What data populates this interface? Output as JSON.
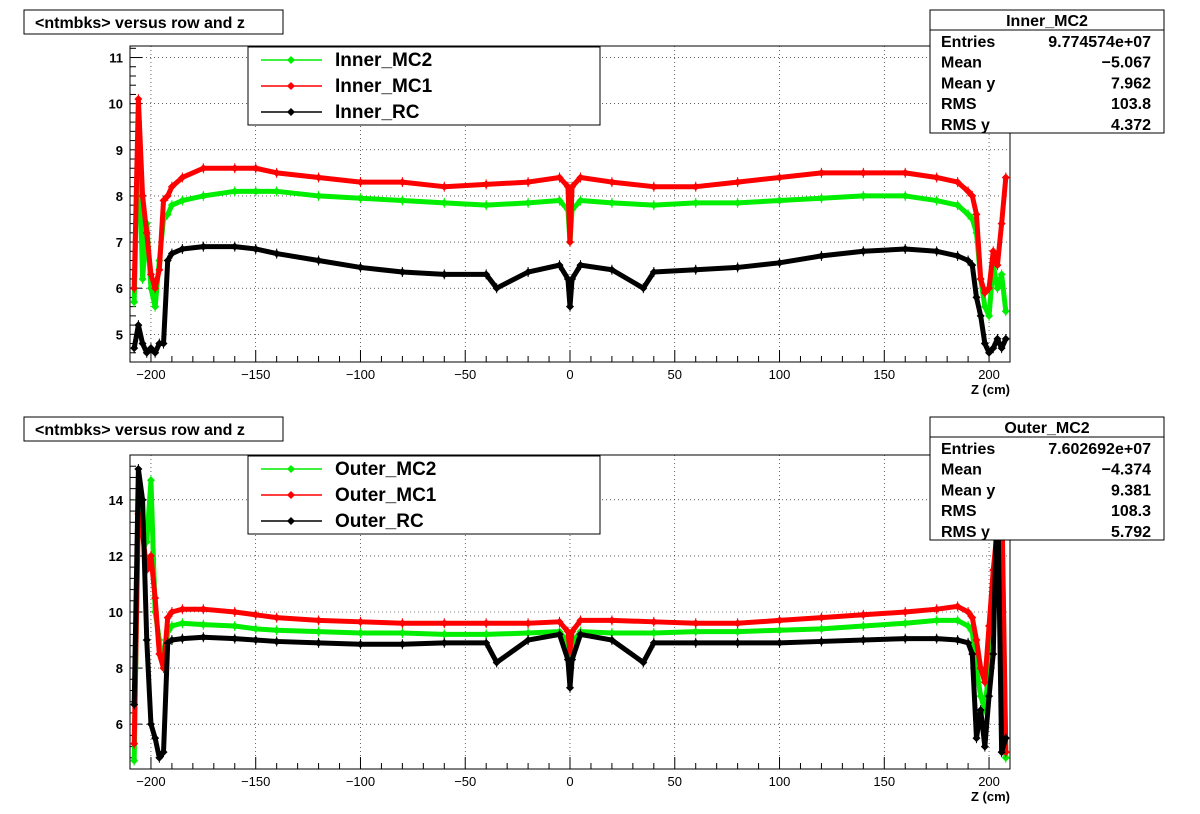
{
  "charts": [
    {
      "id": "inner",
      "title": "<ntmbks> versus row and z",
      "xlabel": "Z (cm)",
      "xlim": [
        -210,
        210
      ],
      "ylim": [
        4.4,
        11.25
      ],
      "xticks": [
        -200,
        -150,
        -100,
        -50,
        0,
        50,
        100,
        150,
        200
      ],
      "xtick_labels": [
        "−200",
        "−150",
        "−100",
        "−50",
        "0",
        "50",
        "100",
        "150",
        "200"
      ],
      "yticks": [
        5,
        6,
        7,
        8,
        9,
        10,
        11
      ],
      "ytick_labels": [
        "5",
        "6",
        "7",
        "8",
        "9",
        "10",
        "11"
      ],
      "legend": [
        "Inner_MC2",
        "Inner_MC1",
        "Inner_RC"
      ],
      "stats": {
        "name": "Inner_MC2",
        "rows": [
          {
            "label": "Entries",
            "value": "9.774574e+07"
          },
          {
            "label": "Mean",
            "value": "−5.067"
          },
          {
            "label": "Mean y",
            "value": "7.962"
          },
          {
            "label": "RMS",
            "value": "103.8"
          },
          {
            "label": "RMS y",
            "value": "4.372"
          }
        ]
      }
    },
    {
      "id": "outer",
      "title": "<ntmbks> versus row and z",
      "xlabel": "Z (cm)",
      "xlim": [
        -210,
        210
      ],
      "ylim": [
        4.4,
        15.6
      ],
      "xticks": [
        -200,
        -150,
        -100,
        -50,
        0,
        50,
        100,
        150,
        200
      ],
      "xtick_labels": [
        "−200",
        "−150",
        "−100",
        "−50",
        "0",
        "50",
        "100",
        "150",
        "200"
      ],
      "yticks": [
        6,
        8,
        10,
        12,
        14
      ],
      "ytick_labels": [
        "6",
        "8",
        "10",
        "12",
        "14"
      ],
      "legend": [
        "Outer_MC2",
        "Outer_MC1",
        "Outer_RC"
      ],
      "stats": {
        "name": "Outer_MC2",
        "rows": [
          {
            "label": "Entries",
            "value": "7.602692e+07"
          },
          {
            "label": "Mean",
            "value": "−4.374"
          },
          {
            "label": "Mean y",
            "value": "9.381"
          },
          {
            "label": "RMS",
            "value": "108.3"
          },
          {
            "label": "RMS y",
            "value": "5.792"
          }
        ]
      }
    }
  ],
  "chart_data": [
    {
      "type": "scatter",
      "title": "<ntmbks> versus row and z",
      "xlabel": "Z (cm)",
      "ylabel": "",
      "xlim": [
        -210,
        210
      ],
      "ylim": [
        4.4,
        11.25
      ],
      "grid": true,
      "legend_position": "top-left",
      "series": [
        {
          "name": "Inner_MC2",
          "color": "#00ee00",
          "x": [
            -208,
            -206,
            -204,
            -202,
            -200,
            -198,
            -196,
            -194,
            -192,
            -190,
            -185,
            -175,
            -160,
            -150,
            -140,
            -120,
            -100,
            -80,
            -60,
            -40,
            -20,
            -5,
            -1,
            0,
            1,
            5,
            20,
            40,
            60,
            80,
            100,
            120,
            140,
            160,
            175,
            185,
            190,
            192,
            194,
            196,
            198,
            200,
            202,
            204,
            206,
            208
          ],
          "y": [
            5.7,
            9.6,
            6.2,
            7.4,
            6.0,
            5.6,
            6.6,
            7.5,
            7.6,
            7.8,
            7.9,
            8.0,
            8.1,
            8.1,
            8.1,
            8.0,
            7.95,
            7.9,
            7.85,
            7.8,
            7.85,
            7.9,
            7.7,
            7.0,
            7.7,
            7.9,
            7.85,
            7.8,
            7.85,
            7.85,
            7.9,
            7.95,
            8.0,
            8.0,
            7.9,
            7.8,
            7.6,
            7.5,
            7.2,
            6.2,
            5.6,
            5.4,
            6.5,
            6.0,
            6.3,
            5.5
          ]
        },
        {
          "name": "Inner_MC1",
          "color": "#ff0000",
          "x": [
            -208,
            -206,
            -204,
            -202,
            -200,
            -198,
            -196,
            -194,
            -192,
            -190,
            -185,
            -175,
            -160,
            -150,
            -140,
            -120,
            -100,
            -80,
            -60,
            -40,
            -20,
            -5,
            -1,
            0,
            1,
            5,
            20,
            40,
            60,
            80,
            100,
            120,
            140,
            160,
            175,
            185,
            190,
            192,
            194,
            196,
            198,
            200,
            202,
            204,
            206,
            208
          ],
          "y": [
            6.0,
            10.1,
            8.0,
            7.2,
            6.3,
            6.0,
            6.4,
            7.9,
            8.0,
            8.2,
            8.4,
            8.6,
            8.6,
            8.6,
            8.5,
            8.4,
            8.3,
            8.3,
            8.2,
            8.25,
            8.3,
            8.4,
            8.2,
            7.0,
            8.2,
            8.4,
            8.3,
            8.2,
            8.2,
            8.3,
            8.4,
            8.5,
            8.5,
            8.5,
            8.4,
            8.3,
            8.1,
            8.0,
            7.6,
            6.2,
            5.9,
            6.0,
            6.8,
            6.5,
            7.4,
            8.4
          ]
        },
        {
          "name": "Inner_RC",
          "color": "#000000",
          "x": [
            -208,
            -206,
            -204,
            -202,
            -200,
            -198,
            -196,
            -194,
            -192,
            -190,
            -185,
            -175,
            -160,
            -150,
            -140,
            -120,
            -100,
            -80,
            -60,
            -40,
            -35,
            -20,
            -5,
            -1,
            0,
            1,
            5,
            20,
            35,
            40,
            60,
            80,
            100,
            120,
            140,
            160,
            175,
            185,
            190,
            192,
            194,
            196,
            198,
            200,
            202,
            204,
            206,
            208
          ],
          "y": [
            4.7,
            5.2,
            4.8,
            4.6,
            4.7,
            4.6,
            4.8,
            4.8,
            6.6,
            6.75,
            6.85,
            6.9,
            6.9,
            6.85,
            6.75,
            6.6,
            6.45,
            6.35,
            6.3,
            6.3,
            6.0,
            6.35,
            6.5,
            6.2,
            5.6,
            6.2,
            6.5,
            6.4,
            6.0,
            6.35,
            6.4,
            6.45,
            6.55,
            6.7,
            6.8,
            6.85,
            6.8,
            6.7,
            6.6,
            6.5,
            5.8,
            5.4,
            4.8,
            4.6,
            4.7,
            4.9,
            4.7,
            4.9
          ]
        }
      ]
    },
    {
      "type": "scatter",
      "title": "<ntmbks> versus row and z",
      "xlabel": "Z (cm)",
      "ylabel": "",
      "xlim": [
        -210,
        210
      ],
      "ylim": [
        4.4,
        15.6
      ],
      "grid": true,
      "legend_position": "top-left",
      "series": [
        {
          "name": "Outer_MC2",
          "color": "#00ee00",
          "x": [
            -208,
            -206,
            -204,
            -202,
            -200,
            -198,
            -196,
            -194,
            -192,
            -190,
            -185,
            -175,
            -160,
            -150,
            -140,
            -120,
            -100,
            -80,
            -60,
            -40,
            -20,
            -5,
            -1,
            0,
            1,
            5,
            20,
            40,
            60,
            80,
            100,
            120,
            140,
            160,
            175,
            185,
            190,
            192,
            194,
            196,
            198,
            200,
            202,
            204,
            206,
            208
          ],
          "y": [
            4.7,
            14.0,
            13.0,
            12.5,
            14.7,
            10.0,
            9.0,
            8.0,
            9.3,
            9.5,
            9.6,
            9.55,
            9.5,
            9.4,
            9.35,
            9.3,
            9.25,
            9.25,
            9.2,
            9.2,
            9.25,
            9.3,
            8.9,
            8.3,
            8.9,
            9.3,
            9.25,
            9.25,
            9.3,
            9.3,
            9.35,
            9.4,
            9.5,
            9.6,
            9.7,
            9.7,
            9.5,
            9.3,
            8.0,
            7.0,
            6.5,
            8.0,
            10.5,
            13.0,
            14.0,
            4.8
          ]
        },
        {
          "name": "Outer_MC1",
          "color": "#ff0000",
          "x": [
            -208,
            -206,
            -204,
            -202,
            -200,
            -198,
            -196,
            -194,
            -192,
            -190,
            -185,
            -175,
            -160,
            -150,
            -140,
            -120,
            -100,
            -80,
            -60,
            -40,
            -20,
            -5,
            -1,
            0,
            1,
            5,
            20,
            40,
            60,
            80,
            100,
            120,
            140,
            160,
            175,
            185,
            190,
            192,
            194,
            196,
            198,
            200,
            202,
            204,
            206,
            208
          ],
          "y": [
            5.3,
            13.5,
            12.8,
            11.5,
            12.0,
            10.5,
            8.5,
            8.0,
            9.8,
            10.0,
            10.1,
            10.1,
            10.0,
            9.9,
            9.8,
            9.7,
            9.65,
            9.6,
            9.6,
            9.6,
            9.6,
            9.65,
            9.3,
            8.6,
            9.3,
            9.7,
            9.7,
            9.65,
            9.6,
            9.6,
            9.7,
            9.8,
            9.9,
            10.0,
            10.1,
            10.2,
            10.0,
            9.8,
            9.0,
            8.0,
            7.5,
            9.5,
            11.5,
            13.0,
            14.5,
            5.0
          ]
        },
        {
          "name": "Outer_RC",
          "color": "#000000",
          "x": [
            -208,
            -206,
            -204,
            -202,
            -200,
            -198,
            -196,
            -194,
            -192,
            -190,
            -185,
            -175,
            -160,
            -150,
            -140,
            -120,
            -100,
            -80,
            -60,
            -40,
            -35,
            -20,
            -5,
            -1,
            0,
            1,
            5,
            20,
            35,
            40,
            60,
            80,
            100,
            120,
            140,
            160,
            175,
            185,
            190,
            192,
            194,
            196,
            198,
            200,
            202,
            204,
            206,
            208
          ],
          "y": [
            6.7,
            15.1,
            14.0,
            9.0,
            6.0,
            5.5,
            4.8,
            5.0,
            8.9,
            9.0,
            9.05,
            9.1,
            9.05,
            9.0,
            8.95,
            8.9,
            8.85,
            8.85,
            8.9,
            8.9,
            8.2,
            9.0,
            9.2,
            8.3,
            7.3,
            8.3,
            9.2,
            9.0,
            8.2,
            8.9,
            8.9,
            8.9,
            8.9,
            8.95,
            9.0,
            9.05,
            9.05,
            9.0,
            8.9,
            8.5,
            5.5,
            6.5,
            5.2,
            7.0,
            8.5,
            14.8,
            5.0,
            5.5
          ]
        }
      ]
    }
  ]
}
